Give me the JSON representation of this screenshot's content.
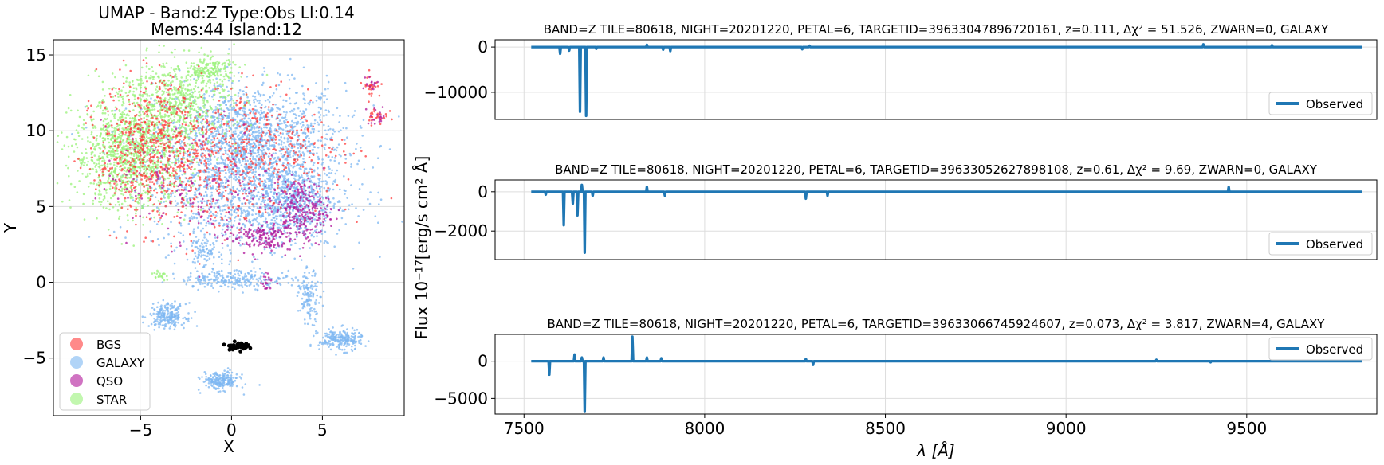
{
  "colors": {
    "bgs": "#ff3b3b",
    "galaxy": "#7db7f2",
    "qso": "#b0169a",
    "star": "#99f27a",
    "selected": "#000000",
    "observed": "#1f77b4",
    "grid": "#dddddd",
    "axis": "#000000"
  },
  "chart_data": [
    {
      "type": "scatter",
      "title_line1": "UMAP  -  Band:Z Type:Obs Ll:0.14",
      "title_line2": "Mems:44 Island:12",
      "xlabel": "X",
      "ylabel": "Y",
      "xlim": [
        -9.8,
        9.5
      ],
      "ylim": [
        -8.8,
        16.0
      ],
      "xticks": [
        -5,
        0,
        5
      ],
      "yticks": [
        -5,
        0,
        5,
        10,
        15
      ],
      "grid": true,
      "legend_position": "lower-left",
      "legend": [
        "BGS",
        "GALAXY",
        "QSO",
        "STAR"
      ],
      "series": [
        {
          "name": "BGS",
          "clusters": [
            {
              "center": [
                -4.5,
                9.0
              ],
              "spread": [
                1.4,
                2.2
              ],
              "count": 520
            },
            {
              "center": [
                -1.0,
                7.5
              ],
              "spread": [
                2.6,
                2.6
              ],
              "count": 380
            },
            {
              "center": [
                2.0,
                9.0
              ],
              "spread": [
                2.4,
                1.6
              ],
              "count": 220
            },
            {
              "center": [
                8.0,
                11.0
              ],
              "spread": [
                0.3,
                0.3
              ],
              "count": 25
            },
            {
              "center": [
                7.7,
                13.0
              ],
              "spread": [
                0.25,
                0.4
              ],
              "count": 25
            }
          ]
        },
        {
          "name": "GALAXY",
          "clusters": [
            {
              "center": [
                1.0,
                9.5
              ],
              "spread": [
                2.6,
                1.8
              ],
              "count": 1400
            },
            {
              "center": [
                0.8,
                6.0
              ],
              "spread": [
                2.6,
                2.0
              ],
              "count": 1100
            },
            {
              "center": [
                3.5,
                5.0
              ],
              "spread": [
                1.0,
                1.3
              ],
              "count": 400
            },
            {
              "center": [
                -3.5,
                -2.2
              ],
              "spread": [
                0.5,
                0.4
              ],
              "count": 220
            },
            {
              "center": [
                -0.6,
                -6.5
              ],
              "spread": [
                0.5,
                0.3
              ],
              "count": 200
            },
            {
              "center": [
                6.0,
                -3.8
              ],
              "spread": [
                0.6,
                0.35
              ],
              "count": 220
            },
            {
              "center": [
                4.3,
                -1.0
              ],
              "spread": [
                0.3,
                0.8
              ],
              "count": 120
            },
            {
              "center": [
                0.3,
                0.2
              ],
              "spread": [
                1.6,
                0.3
              ],
              "count": 230
            },
            {
              "center": [
                -1.5,
                2.0
              ],
              "spread": [
                0.4,
                0.6
              ],
              "count": 80
            }
          ]
        },
        {
          "name": "QSO",
          "clusters": [
            {
              "center": [
                3.8,
                4.8
              ],
              "spread": [
                0.8,
                1.0
              ],
              "count": 260
            },
            {
              "center": [
                1.5,
                3.0
              ],
              "spread": [
                1.0,
                0.5
              ],
              "count": 160
            },
            {
              "center": [
                -2.0,
                6.5
              ],
              "spread": [
                2.5,
                2.0
              ],
              "count": 160
            },
            {
              "center": [
                2.0,
                0.0
              ],
              "spread": [
                0.2,
                0.3
              ],
              "count": 20
            },
            {
              "center": [
                8.0,
                11.0
              ],
              "spread": [
                0.3,
                0.3
              ],
              "count": 20
            },
            {
              "center": [
                7.7,
                13.0
              ],
              "spread": [
                0.25,
                0.4
              ],
              "count": 15
            }
          ]
        },
        {
          "name": "STAR",
          "clusters": [
            {
              "center": [
                -5.5,
                8.5
              ],
              "spread": [
                1.6,
                1.8
              ],
              "count": 1200
            },
            {
              "center": [
                -3.0,
                12.0
              ],
              "spread": [
                1.5,
                1.4
              ],
              "count": 600
            },
            {
              "center": [
                -1.2,
                14.0
              ],
              "spread": [
                0.7,
                0.4
              ],
              "count": 160
            },
            {
              "center": [
                -4.0,
                0.5
              ],
              "spread": [
                0.2,
                0.15
              ],
              "count": 20
            }
          ]
        },
        {
          "name": "selected",
          "clusters": [
            {
              "center": [
                0.3,
                -4.2
              ],
              "spread": [
                0.3,
                0.12
              ],
              "count": 44
            }
          ]
        }
      ]
    },
    {
      "type": "line",
      "title": "BAND=Z TILE=80618, NIGHT=20201220, PETAL=6, TARGETID=39633047896720161, z=0.111, Δχ² = 51.526, ZWARN=0, GALAXY",
      "legend": [
        "Observed"
      ],
      "legend_position": "lower-right",
      "xlim": [
        7420,
        9860
      ],
      "ylim": [
        -16000,
        1600
      ],
      "yticks": [
        0,
        -10000
      ],
      "ytick_labels": [
        "0",
        "−10000"
      ],
      "grid": true,
      "baseline": 0,
      "x_start": 7520,
      "x_end": 9820,
      "features": [
        {
          "x": 7600,
          "y": -1500
        },
        {
          "x": 7625,
          "y": -800
        },
        {
          "x": 7655,
          "y": -14300
        },
        {
          "x": 7672,
          "y": -15200
        },
        {
          "x": 7700,
          "y": -400
        },
        {
          "x": 7840,
          "y": 500
        },
        {
          "x": 7885,
          "y": -600
        },
        {
          "x": 7905,
          "y": -900
        },
        {
          "x": 8270,
          "y": -500
        },
        {
          "x": 8290,
          "y": 300
        },
        {
          "x": 9380,
          "y": 600
        },
        {
          "x": 9570,
          "y": 400
        }
      ]
    },
    {
      "type": "line",
      "title": "BAND=Z TILE=80618, NIGHT=20201220, PETAL=6, TARGETID=39633052627898108, z=0.61, Δχ² = 9.69, ZWARN=0, GALAXY",
      "legend": [
        "Observed"
      ],
      "legend_position": "lower-right",
      "xlim": [
        7420,
        9860
      ],
      "ylim": [
        -3450,
        600
      ],
      "yticks": [
        0,
        -2000
      ],
      "ytick_labels": [
        "0",
        "−2000"
      ],
      "grid": true,
      "baseline": 0,
      "x_start": 7520,
      "x_end": 9820,
      "features": [
        {
          "x": 7560,
          "y": -150
        },
        {
          "x": 7610,
          "y": -1700
        },
        {
          "x": 7635,
          "y": -600
        },
        {
          "x": 7648,
          "y": -1200
        },
        {
          "x": 7660,
          "y": 350
        },
        {
          "x": 7668,
          "y": -3100
        },
        {
          "x": 7690,
          "y": -200
        },
        {
          "x": 7840,
          "y": 250
        },
        {
          "x": 7890,
          "y": -200
        },
        {
          "x": 8280,
          "y": -350
        },
        {
          "x": 8340,
          "y": -200
        },
        {
          "x": 9450,
          "y": 250
        }
      ]
    },
    {
      "type": "line",
      "title": "BAND=Z TILE=80618, NIGHT=20201220, PETAL=6, TARGETID=39633066745924607, z=0.073, Δχ² = 3.817, ZWARN=4, GALAXY",
      "legend": [
        "Observed"
      ],
      "legend_position": "upper-right",
      "xlim": [
        7420,
        9860
      ],
      "ylim": [
        -7100,
        3600
      ],
      "yticks": [
        0,
        -5000
      ],
      "ytick_labels": [
        "0",
        "−5000"
      ],
      "xticks": [
        7500,
        8000,
        8500,
        9000,
        9500
      ],
      "xlabel": "λ [Å]",
      "grid": true,
      "baseline": 0,
      "x_start": 7520,
      "x_end": 9820,
      "features": [
        {
          "x": 7570,
          "y": -1800
        },
        {
          "x": 7640,
          "y": 900
        },
        {
          "x": 7660,
          "y": 500
        },
        {
          "x": 7668,
          "y": -6800
        },
        {
          "x": 7720,
          "y": 500
        },
        {
          "x": 7800,
          "y": 3300
        },
        {
          "x": 7840,
          "y": 500
        },
        {
          "x": 7880,
          "y": 400
        },
        {
          "x": 8280,
          "y": 300
        },
        {
          "x": 8300,
          "y": -500
        },
        {
          "x": 9250,
          "y": 200
        },
        {
          "x": 9400,
          "y": -150
        }
      ]
    }
  ],
  "shared": {
    "ylabel": "Flux 10⁻¹⁷[erg/s cm² Å]"
  }
}
